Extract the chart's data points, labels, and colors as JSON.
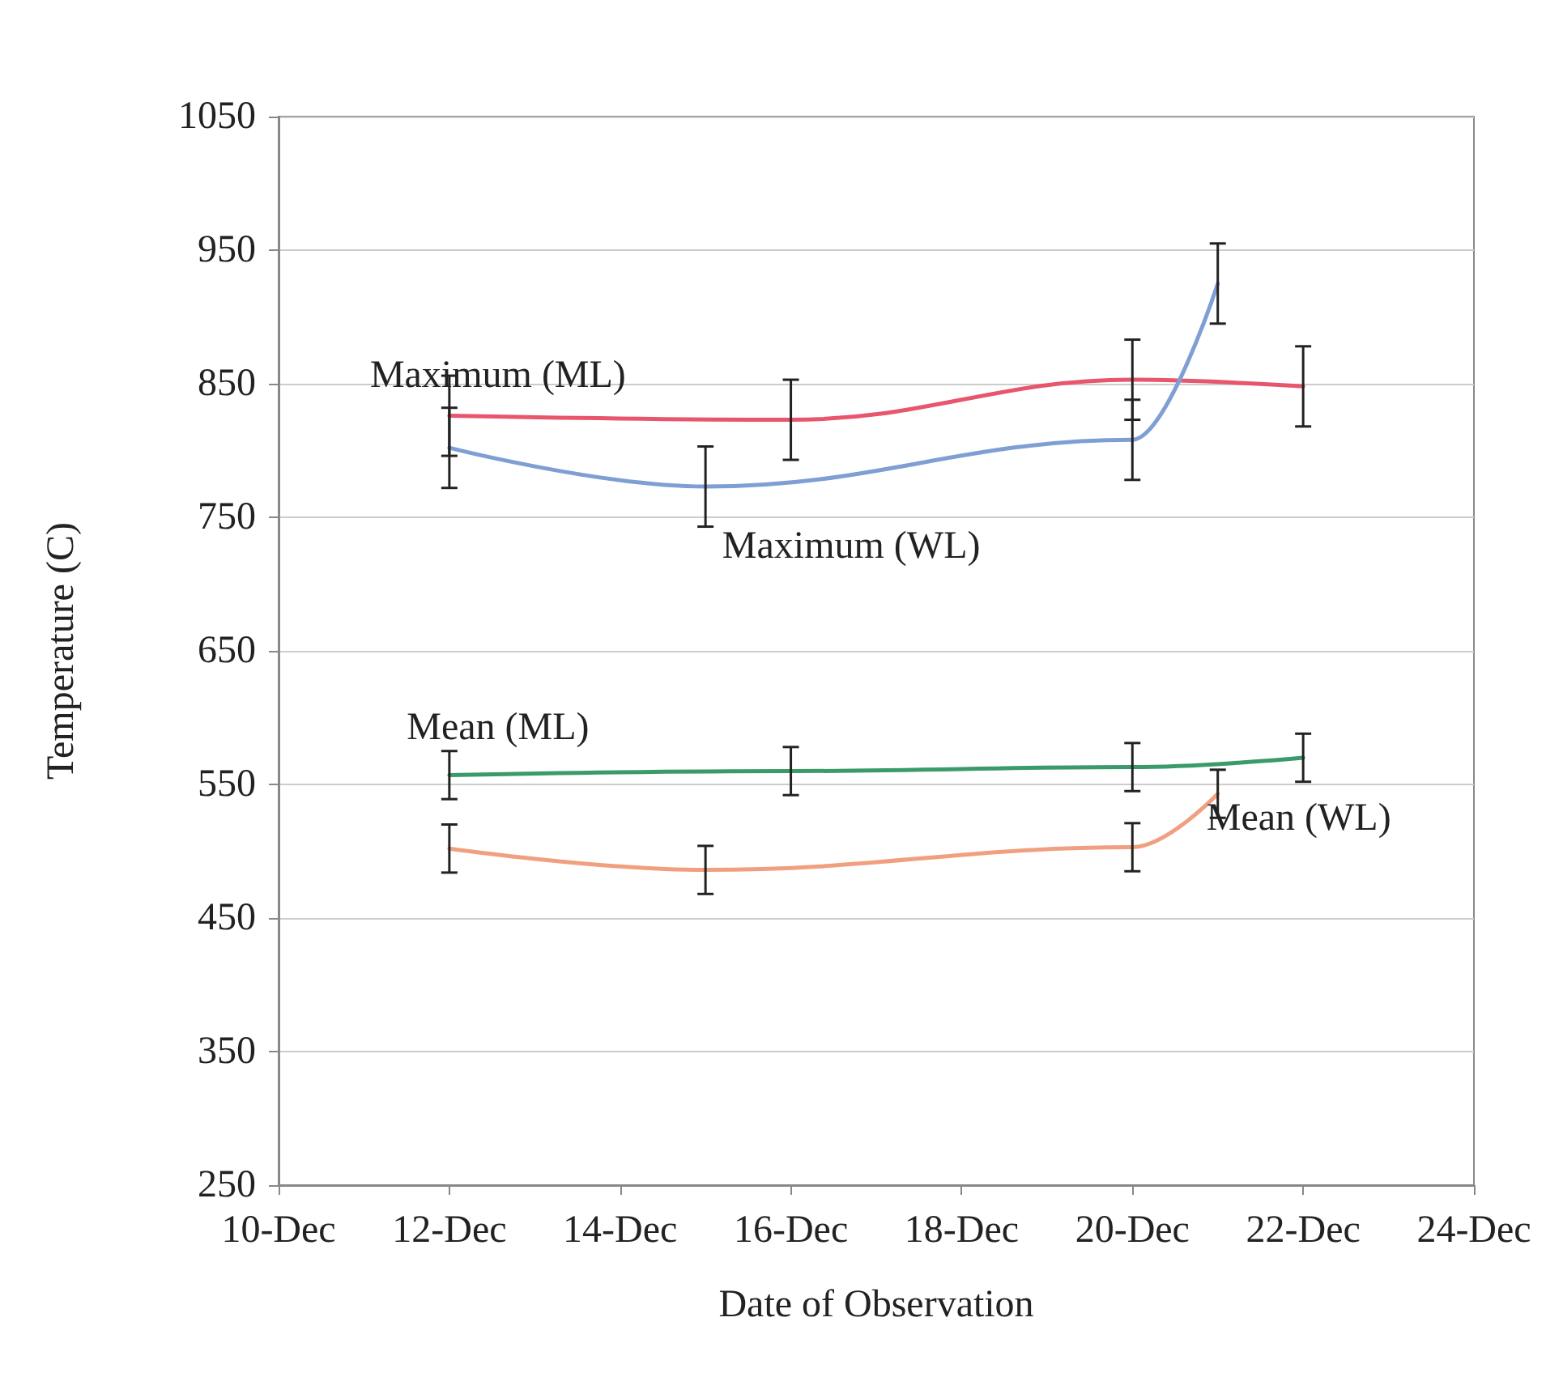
{
  "chart_data": {
    "type": "line",
    "xlabel": "Date of Observation",
    "ylabel": "Temperature (C)",
    "xlim": [
      "--12-10",
      "--12-24"
    ],
    "xticks": [
      {
        "value": "--12-10",
        "label": "10-Dec"
      },
      {
        "value": "--12-12",
        "label": "12-Dec"
      },
      {
        "value": "--12-14",
        "label": "14-Dec"
      },
      {
        "value": "--12-16",
        "label": "16-Dec"
      },
      {
        "value": "--12-18",
        "label": "18-Dec"
      },
      {
        "value": "--12-20",
        "label": "20-Dec"
      },
      {
        "value": "--12-22",
        "label": "22-Dec"
      },
      {
        "value": "--12-24",
        "label": "24-Dec"
      }
    ],
    "ylim": [
      250,
      1050
    ],
    "yticks": [
      250,
      350,
      450,
      550,
      650,
      750,
      850,
      950,
      1050
    ],
    "grid": "y",
    "legend": false,
    "marker": "none",
    "line_style": "solid",
    "series": [
      {
        "name": "Maximum (ML)",
        "color": "#e8566e",
        "x": [
          "--12-12",
          "--12-16",
          "--12-20",
          "--12-22"
        ],
        "values": [
          826,
          823,
          853,
          848
        ],
        "errors": [
          30,
          30,
          30,
          30
        ]
      },
      {
        "name": "Maximum (WL)",
        "color": "#7f9fd4",
        "x": [
          "--12-12",
          "--12-15",
          "--12-20",
          "--12-21"
        ],
        "values": [
          802,
          773,
          808,
          925
        ],
        "errors": [
          30,
          30,
          30,
          30
        ]
      },
      {
        "name": "Mean (ML)",
        "color": "#3a9a6a",
        "x": [
          "--12-12",
          "--12-16",
          "--12-20",
          "--12-22"
        ],
        "values": [
          557,
          560,
          563,
          570
        ],
        "errors": [
          18,
          18,
          18,
          18
        ]
      },
      {
        "name": "Mean (WL)",
        "color": "#f0a080",
        "x": [
          "--12-12",
          "--12-15",
          "--12-20",
          "--12-21"
        ],
        "values": [
          502,
          486,
          503,
          543
        ],
        "errors": [
          18,
          18,
          18,
          18
        ]
      }
    ]
  }
}
